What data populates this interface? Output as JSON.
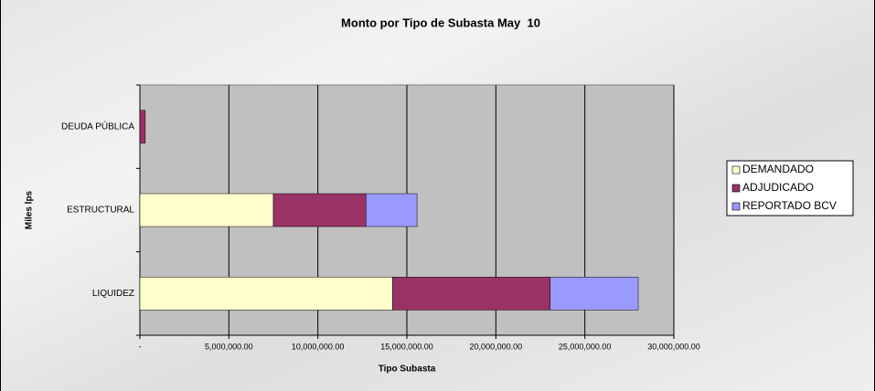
{
  "chart_data": {
    "type": "stacked-bar-horizontal",
    "title": "Monto por Tipo de Subasta May  10",
    "x_label": "Tipo Subasta",
    "y_label": "Miles lps",
    "categories": [
      "DEUDA PÚBLICA",
      "ESTRUCTURAL",
      "LIQUIDEZ"
    ],
    "series": [
      {
        "name": "DEMANDADO",
        "color": "#ffffcc",
        "values": [
          0,
          7500000,
          14200000
        ]
      },
      {
        "name": "ADJUDICADO",
        "color": "#993366",
        "values": [
          300000,
          5200000,
          8850000
        ]
      },
      {
        "name": "REPORTADO BCV",
        "color": "#9999ff",
        "values": [
          0,
          2870000,
          4950000
        ]
      }
    ],
    "xlim": [
      0,
      30000000
    ],
    "xticks": [
      {
        "value": 0,
        "label": "-"
      },
      {
        "value": 5000000,
        "label": "5,000,000.00"
      },
      {
        "value": 10000000,
        "label": "10,000,000.00"
      },
      {
        "value": 15000000,
        "label": "15,000,000.00"
      },
      {
        "value": 20000000,
        "label": "20,000,000.00"
      },
      {
        "value": 25000000,
        "label": "25,000,000.00"
      },
      {
        "value": 30000000,
        "label": "30,000,000.00"
      }
    ],
    "grid": true,
    "legend": "right"
  }
}
